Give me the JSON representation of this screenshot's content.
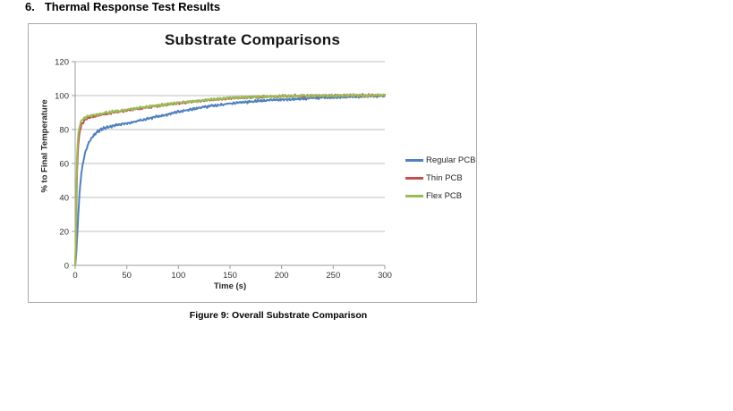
{
  "page": {
    "heading_number": "6.",
    "heading": "Thermal Response Test Results",
    "caption": "Figure 9: Overall Substrate Comparison"
  },
  "chart_data": {
    "type": "line",
    "title": "Substrate Comparisons",
    "xlabel": "Time (s)",
    "ylabel": "% to Final Temperature",
    "xlim": [
      0,
      300
    ],
    "ylim": [
      0,
      120
    ],
    "xticks": [
      0,
      50,
      100,
      150,
      200,
      250,
      300
    ],
    "yticks": [
      0,
      20,
      40,
      60,
      80,
      100,
      120
    ],
    "grid": "horizontal",
    "legend_position": "right",
    "noise_amplitude": 0.7,
    "colors": {
      "gridline": "#bfbfbf",
      "axis": "#9b9b9b",
      "panel_border": "#a9a9a9"
    },
    "series": [
      {
        "name": "Regular PCB",
        "color": "#4F81BD",
        "points": [
          [
            0,
            0
          ],
          [
            1,
            6
          ],
          [
            2,
            18
          ],
          [
            3,
            30
          ],
          [
            4,
            40
          ],
          [
            5,
            48
          ],
          [
            6,
            54
          ],
          [
            8,
            62
          ],
          [
            10,
            67
          ],
          [
            13,
            72
          ],
          [
            16,
            75
          ],
          [
            20,
            78
          ],
          [
            25,
            80
          ],
          [
            30,
            81.2
          ],
          [
            40,
            82.7
          ],
          [
            50,
            83.8
          ],
          [
            60,
            85
          ],
          [
            75,
            87
          ],
          [
            90,
            89
          ],
          [
            100,
            90.5
          ],
          [
            120,
            92.8
          ],
          [
            140,
            94.6
          ],
          [
            160,
            96
          ],
          [
            180,
            96.9
          ],
          [
            200,
            97.6
          ],
          [
            220,
            98.2
          ],
          [
            240,
            98.8
          ],
          [
            260,
            99.2
          ],
          [
            280,
            99.6
          ],
          [
            300,
            99.8
          ]
        ]
      },
      {
        "name": "Thin PCB",
        "color": "#C0504D",
        "points": [
          [
            0,
            0
          ],
          [
            0.5,
            6
          ],
          [
            1,
            26
          ],
          [
            1.5,
            48
          ],
          [
            2,
            60
          ],
          [
            3,
            71
          ],
          [
            4,
            77
          ],
          [
            5,
            80.5
          ],
          [
            6,
            82.5
          ],
          [
            8,
            84.5
          ],
          [
            10,
            85.8
          ],
          [
            13,
            86.8
          ],
          [
            16,
            87.4
          ],
          [
            20,
            88
          ],
          [
            25,
            88.7
          ],
          [
            30,
            89.3
          ],
          [
            40,
            90.3
          ],
          [
            50,
            91.3
          ],
          [
            60,
            92.2
          ],
          [
            75,
            93.5
          ],
          [
            90,
            94.8
          ],
          [
            100,
            95.6
          ],
          [
            110,
            96.2
          ],
          [
            125,
            97.1
          ],
          [
            150,
            98.5
          ],
          [
            175,
            99.2
          ],
          [
            200,
            99.7
          ],
          [
            225,
            99.9
          ],
          [
            250,
            100
          ],
          [
            275,
            100.1
          ],
          [
            300,
            100.1
          ]
        ]
      },
      {
        "name": "Flex PCB",
        "color": "#9BBB59",
        "points": [
          [
            0,
            0
          ],
          [
            0.5,
            10
          ],
          [
            1,
            35
          ],
          [
            1.5,
            58
          ],
          [
            2,
            68
          ],
          [
            3,
            77
          ],
          [
            4,
            81
          ],
          [
            5,
            83.5
          ],
          [
            6,
            85
          ],
          [
            8,
            86.3
          ],
          [
            10,
            87.2
          ],
          [
            13,
            87.9
          ],
          [
            16,
            88.3
          ],
          [
            20,
            88.8
          ],
          [
            25,
            89.4
          ],
          [
            30,
            89.9
          ],
          [
            40,
            90.8
          ],
          [
            50,
            91.7
          ],
          [
            60,
            92.5
          ],
          [
            75,
            93.8
          ],
          [
            90,
            95
          ],
          [
            100,
            95.8
          ],
          [
            110,
            96.4
          ],
          [
            125,
            97.3
          ],
          [
            150,
            98.6
          ],
          [
            175,
            99.3
          ],
          [
            200,
            99.7
          ],
          [
            225,
            99.9
          ],
          [
            250,
            100
          ],
          [
            275,
            100.1
          ],
          [
            300,
            100.2
          ]
        ]
      }
    ]
  }
}
